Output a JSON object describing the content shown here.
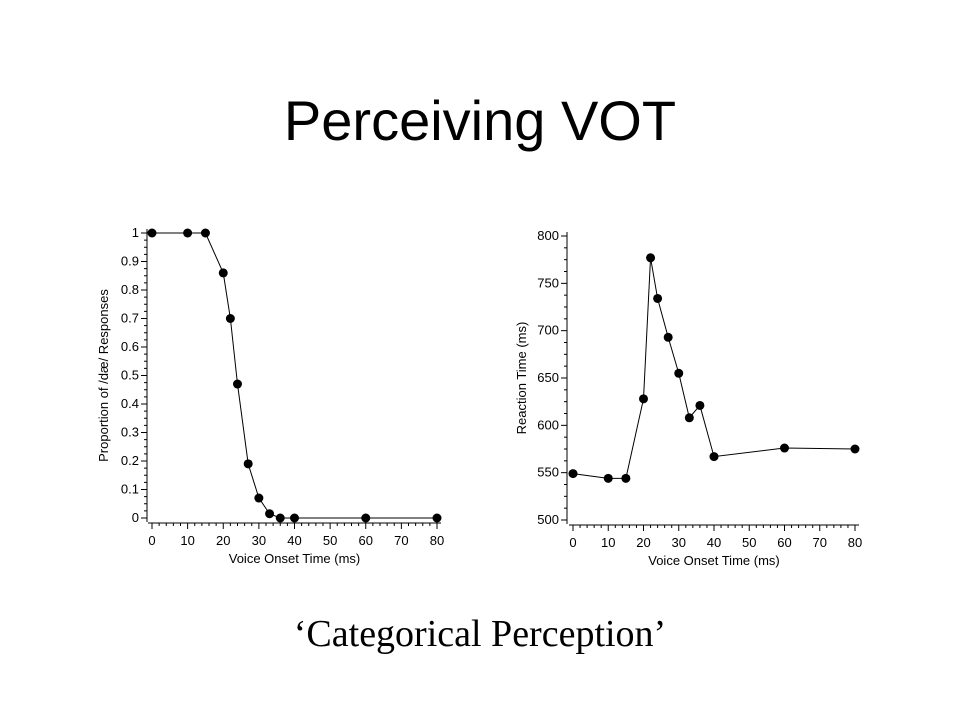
{
  "slide": {
    "title": "Perceiving VOT",
    "caption": "‘Categorical Perception’"
  },
  "chart_data": [
    {
      "type": "line",
      "xlabel": "Voice Onset Time (ms)",
      "ylabel": "Proportion of /dæ/ Responses",
      "xlim": [
        0,
        80
      ],
      "ylim": [
        0,
        1
      ],
      "xticks": [
        0,
        10,
        20,
        30,
        40,
        50,
        60,
        70,
        80
      ],
      "yticks": [
        0,
        0.1,
        0.2,
        0.3,
        0.4,
        0.5,
        0.6,
        0.7,
        0.8,
        0.9,
        1
      ],
      "ytick_labels": [
        "0",
        "0.1",
        "0.2",
        "0.3",
        "0.4",
        "0.5",
        "0.6",
        "0.7",
        "0.8",
        "0.9",
        "1"
      ],
      "x": [
        0,
        10,
        15,
        20,
        22,
        24,
        27,
        30,
        33,
        36,
        40,
        60,
        80
      ],
      "y": [
        1,
        1,
        1,
        0.86,
        0.7,
        0.47,
        0.19,
        0.07,
        0.015,
        0,
        0,
        0,
        0
      ],
      "grid": false
    },
    {
      "type": "line",
      "xlabel": "Voice Onset Time (ms)",
      "ylabel": "Reaction Time (ms)",
      "xlim": [
        0,
        80
      ],
      "ylim": [
        500,
        800
      ],
      "xticks": [
        0,
        10,
        20,
        30,
        40,
        50,
        60,
        70,
        80
      ],
      "yticks": [
        500,
        550,
        600,
        650,
        700,
        750,
        800
      ],
      "ytick_labels": [
        "500",
        "550",
        "600",
        "650",
        "700",
        "750",
        "800"
      ],
      "x": [
        0,
        10,
        15,
        20,
        22,
        24,
        27,
        30,
        33,
        36,
        40,
        60,
        80
      ],
      "y": [
        549,
        544,
        544,
        628,
        777,
        734,
        693,
        655,
        608,
        621,
        567,
        576,
        575
      ],
      "grid": false
    }
  ]
}
